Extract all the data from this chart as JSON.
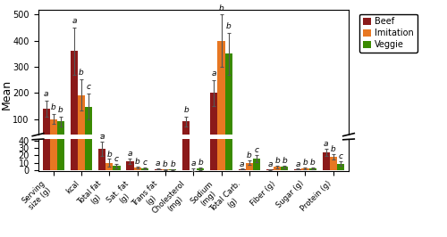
{
  "categories": [
    "Serving\nsize (g)",
    "kcal",
    "Total fat\n(g)",
    "Sat. fat\n(g)",
    "Trans fat\n(g)",
    "Cholesterol\n(mg)",
    "Sodium\n(mg)",
    "Total Carb.\n(g)",
    "Fiber (g)",
    "Sugar (g)",
    "Protein (g)"
  ],
  "beef_means": [
    140,
    360,
    29,
    12,
    1.2,
    90,
    200,
    1.0,
    0.5,
    1.0,
    24
  ],
  "beef_sd": [
    30,
    90,
    10,
    4,
    0.5,
    20,
    50,
    0.5,
    0.3,
    0.5,
    5
  ],
  "imitation_means": [
    100,
    192,
    10,
    3,
    0.4,
    0,
    400,
    10,
    4,
    2,
    18
  ],
  "imitation_sd": [
    20,
    60,
    5,
    1.5,
    0.2,
    2,
    100,
    3,
    1.5,
    1,
    4
  ],
  "veggie_means": [
    90,
    148,
    5.5,
    2,
    0.3,
    1.5,
    350,
    16,
    4,
    2,
    8.5
  ],
  "veggie_sd": [
    20,
    50,
    3,
    1.2,
    0.2,
    1.5,
    80,
    5,
    2,
    1,
    3
  ],
  "beef_letters": [
    "a",
    "a",
    "a",
    "a",
    "a",
    "b",
    "a",
    "a",
    "a",
    "a",
    "a"
  ],
  "imitation_letters": [
    "b",
    "b",
    "b",
    "b",
    "b",
    "a",
    "b",
    "b",
    "b",
    "b",
    "b"
  ],
  "veggie_letters": [
    "b",
    "c",
    "c",
    "c",
    "b",
    "b",
    "b",
    "c",
    "b",
    "b",
    "c"
  ],
  "colors": {
    "beef": "#8B1A1A",
    "imitation": "#E87722",
    "veggie": "#3A8A00"
  },
  "ylabel": "Mean",
  "top_yticks": [
    100,
    200,
    300,
    400,
    500
  ],
  "bottom_yticks": [
    0,
    10,
    20,
    30,
    40
  ],
  "bar_width": 0.26,
  "legend_labels": [
    "Beef",
    "Imitation",
    "Veggie"
  ]
}
